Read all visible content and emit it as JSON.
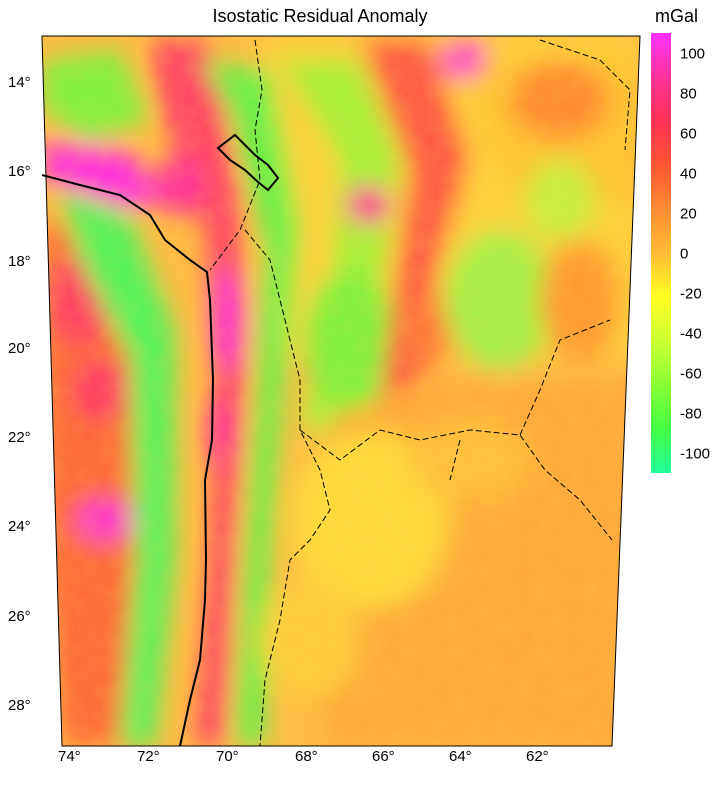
{
  "title": "Isostatic Residual Anomaly",
  "colorbar": {
    "unit": "mGal",
    "ticks": [
      "100",
      "80",
      "60",
      "40",
      "20",
      "0",
      "-20",
      "-40",
      "-60",
      "-80",
      "-100"
    ],
    "stops": [
      "#ff33ff",
      "#ff3399",
      "#ff3355",
      "#ff5533",
      "#ff8c33",
      "#ffbb33",
      "#ffff22",
      "#ccff33",
      "#88ff33",
      "#44ff44",
      "#22ff99"
    ]
  },
  "map": {
    "lat_labels": [
      "14°",
      "16°",
      "18°",
      "20°",
      "22°",
      "24°",
      "26°",
      "28°"
    ],
    "lon_labels": [
      "74°",
      "72°",
      "70°",
      "68°",
      "66°",
      "64°",
      "62°"
    ],
    "lat_range": [
      13,
      29
    ],
    "lon_range": [
      -74,
      -60
    ]
  }
}
